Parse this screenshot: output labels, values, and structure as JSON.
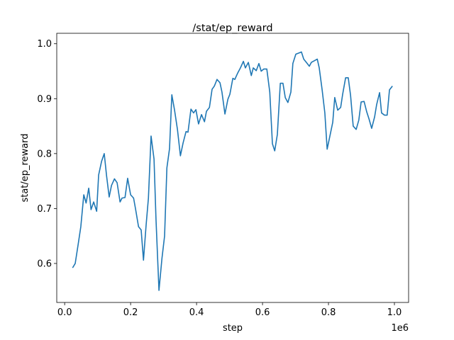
{
  "chart_data": {
    "type": "line",
    "title": "/stat/ep_reward",
    "x_label": "step",
    "y_label": "stat/ep_reward",
    "x_offset_label": "1e6",
    "color": "#1f77b4",
    "grid": false,
    "x": [
      24000,
      32000,
      41000,
      49000,
      58000,
      65000,
      73000,
      80000,
      88000,
      97000,
      103000,
      112000,
      120000,
      127000,
      135000,
      142000,
      151000,
      159000,
      168000,
      174000,
      183000,
      191000,
      200000,
      209000,
      215000,
      224000,
      232000,
      239000,
      247000,
      254000,
      262000,
      271000,
      277000,
      286000,
      295000,
      303000,
      310000,
      318000,
      325000,
      333000,
      342000,
      351000,
      359000,
      368000,
      374000,
      383000,
      391000,
      398000,
      406000,
      415000,
      424000,
      430000,
      439000,
      447000,
      454000,
      462000,
      471000,
      477000,
      486000,
      495000,
      501000,
      510000,
      516000,
      525000,
      533000,
      542000,
      548000,
      557000,
      566000,
      572000,
      581000,
      589000,
      596000,
      604000,
      613000,
      622000,
      630000,
      637000,
      645000,
      654000,
      662000,
      669000,
      677000,
      686000,
      692000,
      701000,
      710000,
      718000,
      725000,
      733000,
      742000,
      748000,
      757000,
      766000,
      772000,
      781000,
      789000,
      796000,
      804000,
      813000,
      819000,
      828000,
      837000,
      843000,
      852000,
      860000,
      867000,
      875000,
      884000,
      892000,
      899000,
      908000,
      916000,
      923000,
      931000,
      940000,
      946000,
      955000,
      961000,
      970000,
      978000,
      985000,
      994000
    ],
    "values": [
      0.592,
      0.6,
      0.635,
      0.667,
      0.725,
      0.71,
      0.737,
      0.698,
      0.712,
      0.695,
      0.761,
      0.786,
      0.8,
      0.76,
      0.721,
      0.742,
      0.754,
      0.747,
      0.712,
      0.719,
      0.72,
      0.755,
      0.725,
      0.719,
      0.699,
      0.667,
      0.661,
      0.606,
      0.67,
      0.719,
      0.832,
      0.79,
      0.68,
      0.551,
      0.609,
      0.65,
      0.774,
      0.809,
      0.907,
      0.88,
      0.844,
      0.796,
      0.819,
      0.84,
      0.839,
      0.881,
      0.874,
      0.88,
      0.854,
      0.871,
      0.858,
      0.877,
      0.884,
      0.917,
      0.923,
      0.935,
      0.929,
      0.912,
      0.872,
      0.899,
      0.908,
      0.937,
      0.935,
      0.947,
      0.956,
      0.968,
      0.956,
      0.966,
      0.942,
      0.956,
      0.951,
      0.964,
      0.95,
      0.954,
      0.954,
      0.912,
      0.818,
      0.805,
      0.835,
      0.928,
      0.928,
      0.902,
      0.893,
      0.912,
      0.964,
      0.981,
      0.983,
      0.985,
      0.972,
      0.966,
      0.959,
      0.966,
      0.969,
      0.972,
      0.956,
      0.915,
      0.874,
      0.808,
      0.831,
      0.857,
      0.902,
      0.879,
      0.884,
      0.908,
      0.938,
      0.938,
      0.906,
      0.85,
      0.844,
      0.861,
      0.894,
      0.895,
      0.876,
      0.863,
      0.846,
      0.867,
      0.889,
      0.911,
      0.874,
      0.87,
      0.87,
      0.916,
      0.923
    ],
    "xlim": [
      -24000,
      1043000
    ],
    "ylim": [
      0.529,
      1.019
    ],
    "xticks": [
      {
        "value": 0,
        "label": "0.0"
      },
      {
        "value": 200000,
        "label": "0.2"
      },
      {
        "value": 400000,
        "label": "0.4"
      },
      {
        "value": 600000,
        "label": "0.6"
      },
      {
        "value": 800000,
        "label": "0.8"
      },
      {
        "value": 1000000,
        "label": "1.0"
      }
    ],
    "yticks": [
      0.6,
      0.7,
      0.8,
      0.9,
      {
        "value": 1.0,
        "label": "1.0"
      }
    ]
  }
}
